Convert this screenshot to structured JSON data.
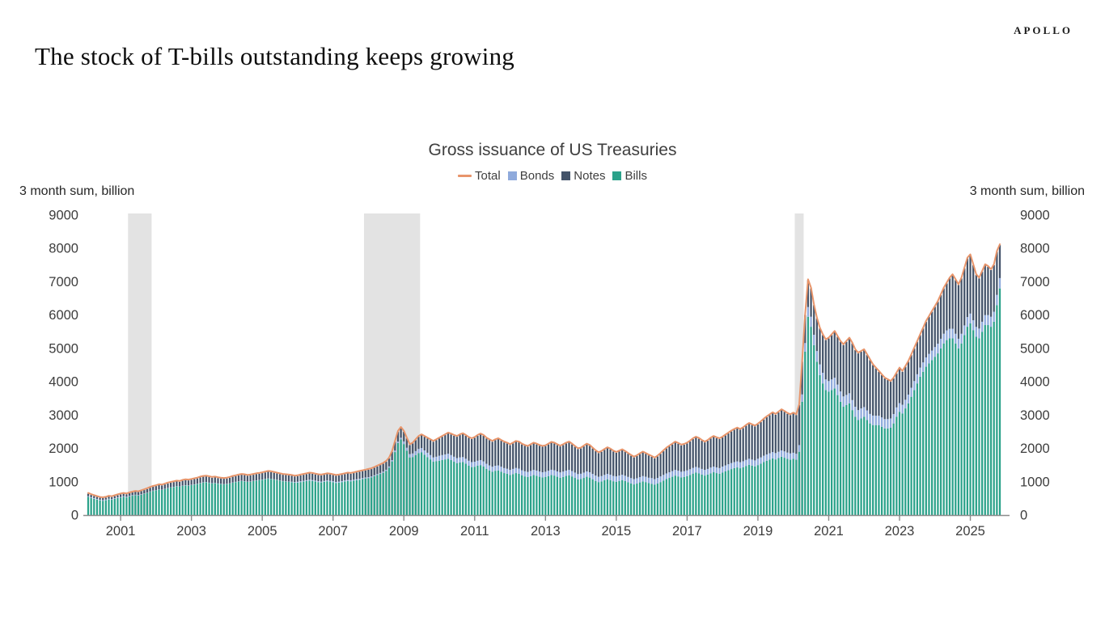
{
  "page": {
    "logo": "APOLLO",
    "headline": "The stock of T-bills outstanding keeps growing"
  },
  "chart": {
    "title": "Gross issuance of US Treasuries",
    "axis_unit_left": "3 month sum, billion",
    "axis_unit_right": "3 month sum, billion",
    "legend": [
      {
        "label": "Total",
        "type": "line",
        "color": "#E8956B"
      },
      {
        "label": "Bonds",
        "type": "square",
        "color": "#8FAADC"
      },
      {
        "label": "Notes",
        "type": "square",
        "color": "#44546A"
      },
      {
        "label": "Bills",
        "type": "square",
        "color": "#2BA28A"
      }
    ],
    "colors": {
      "recession_band": "#E3E3E3",
      "axis": "#8C8C8C",
      "tick_text": "#3d3d3d"
    }
  },
  "chart_data": {
    "type": "bar",
    "subtype": "stacked-bars-with-total-line",
    "title": "Gross issuance of US Treasuries",
    "ylabel": "3 month sum, billion",
    "ylim": [
      0,
      9000
    ],
    "y_ticks": [
      0,
      1000,
      2000,
      3000,
      4000,
      5000,
      6000,
      7000,
      8000,
      9000
    ],
    "x_tick_years": [
      2001,
      2003,
      2005,
      2007,
      2009,
      2011,
      2013,
      2015,
      2017,
      2019,
      2021,
      2023,
      2025
    ],
    "frequency": "monthly",
    "start_month": "2000-02",
    "end_month": "2025-11",
    "grid": false,
    "legend_position": "top-center",
    "recession_bands": [
      {
        "from": "2001-04",
        "to": "2001-11"
      },
      {
        "from": "2007-12",
        "to": "2009-06"
      },
      {
        "from": "2020-02",
        "to": "2020-04"
      }
    ],
    "total_series_is_sum_of_stacked": true,
    "series": [
      {
        "name": "Bills",
        "color": "#2BA28A",
        "values": [
          545,
          515,
          490,
          465,
          440,
          430,
          445,
          470,
          460,
          485,
          510,
          525,
          545,
          530,
          557,
          580,
          595,
          585,
          610,
          640,
          665,
          700,
          725,
          740,
          765,
          755,
          780,
          805,
          825,
          840,
          860,
          850,
          875,
          890,
          880,
          900,
          915,
          930,
          955,
          975,
          985,
          965,
          950,
          955,
          940,
          930,
          920,
          930,
          945,
          970,
          990,
          1005,
          1020,
          1010,
          995,
          1000,
          1020,
          1035,
          1045,
          1060,
          1075,
          1090,
          1080,
          1065,
          1050,
          1030,
          1015,
          1005,
          995,
          985,
          970,
          975,
          990,
          1005,
          1020,
          1035,
          1025,
          1010,
          990,
          980,
          1000,
          1015,
          1005,
          985,
          965,
          975,
          990,
          1010,
          1025,
          1015,
          1030,
          1045,
          1060,
          1080,
          1100,
          1110,
          1130,
          1165,
          1200,
          1235,
          1270,
          1325,
          1420,
          1610,
          1890,
          2160,
          2270,
          2130,
          1930,
          1730,
          1740,
          1800,
          1860,
          1880,
          1810,
          1740,
          1670,
          1600,
          1620,
          1630,
          1650,
          1670,
          1690,
          1650,
          1600,
          1560,
          1580,
          1590,
          1540,
          1480,
          1440,
          1450,
          1480,
          1500,
          1460,
          1390,
          1340,
          1300,
          1330,
          1340,
          1300,
          1260,
          1240,
          1200,
          1230,
          1260,
          1240,
          1190,
          1160,
          1140,
          1170,
          1200,
          1180,
          1150,
          1130,
          1140,
          1170,
          1200,
          1185,
          1150,
          1120,
          1145,
          1175,
          1195,
          1160,
          1115,
          1070,
          1080,
          1115,
          1150,
          1125,
          1075,
          1025,
          990,
          1010,
          1045,
          1075,
          1050,
          1015,
          1000,
          1025,
          1050,
          1020,
          985,
          950,
          920,
          945,
          980,
          1010,
          990,
          960,
          940,
          910,
          945,
          990,
          1035,
          1080,
          1115,
          1150,
          1185,
          1160,
          1130,
          1145,
          1170,
          1205,
          1245,
          1275,
          1250,
          1215,
          1185,
          1215,
          1255,
          1285,
          1260,
          1240,
          1275,
          1310,
          1345,
          1380,
          1410,
          1430,
          1405,
          1435,
          1475,
          1510,
          1485,
          1460,
          1500,
          1540,
          1590,
          1630,
          1665,
          1700,
          1670,
          1710,
          1750,
          1720,
          1685,
          1660,
          1690,
          1660,
          1900,
          3400,
          4900,
          5950,
          5650,
          5100,
          4600,
          4200,
          3950,
          3750,
          3700,
          3750,
          3800,
          3600,
          3400,
          3250,
          3300,
          3350,
          3150,
          2950,
          2850,
          2900,
          2950,
          2850,
          2750,
          2700,
          2700,
          2700,
          2650,
          2600,
          2600,
          2620,
          2750,
          2950,
          3100,
          3050,
          3200,
          3350,
          3550,
          3750,
          3950,
          4150,
          4300,
          4450,
          4550,
          4650,
          4750,
          4850,
          5000,
          5150,
          5250,
          5300,
          5300,
          5150,
          5000,
          5150,
          5400,
          5650,
          5750,
          5550,
          5350,
          5300,
          5500,
          5700,
          5700,
          5650,
          5800,
          6300,
          6800
        ]
      },
      {
        "name": "Bonds",
        "color": "#8FAADC",
        "values": [
          20,
          20,
          20,
          20,
          20,
          20,
          20,
          20,
          20,
          20,
          20,
          20,
          20,
          20,
          20,
          20,
          15,
          15,
          15,
          10,
          10,
          10,
          10,
          8,
          8,
          8,
          8,
          8,
          8,
          8,
          8,
          8,
          8,
          8,
          8,
          8,
          8,
          8,
          8,
          8,
          8,
          8,
          8,
          8,
          8,
          8,
          8,
          8,
          8,
          8,
          8,
          8,
          8,
          8,
          8,
          8,
          8,
          8,
          8,
          8,
          8,
          8,
          8,
          8,
          8,
          8,
          8,
          8,
          10,
          15,
          20,
          25,
          25,
          25,
          25,
          25,
          25,
          25,
          25,
          25,
          25,
          25,
          25,
          30,
          30,
          30,
          30,
          30,
          30,
          30,
          30,
          30,
          30,
          30,
          30,
          30,
          30,
          30,
          30,
          30,
          35,
          35,
          40,
          40,
          45,
          45,
          50,
          80,
          90,
          100,
          110,
          120,
          125,
          130,
          130,
          130,
          130,
          130,
          130,
          150,
          150,
          150,
          150,
          150,
          150,
          150,
          150,
          150,
          150,
          150,
          150,
          150,
          150,
          150,
          150,
          150,
          150,
          150,
          150,
          150,
          150,
          150,
          150,
          155,
          155,
          155,
          155,
          155,
          155,
          155,
          155,
          155,
          155,
          155,
          155,
          160,
          160,
          160,
          160,
          160,
          160,
          160,
          160,
          160,
          160,
          160,
          160,
          160,
          160,
          160,
          160,
          160,
          160,
          160,
          160,
          160,
          160,
          160,
          160,
          160,
          160,
          160,
          160,
          160,
          160,
          160,
          160,
          160,
          160,
          160,
          160,
          170,
          170,
          170,
          170,
          170,
          170,
          170,
          170,
          170,
          170,
          170,
          170,
          170,
          170,
          170,
          170,
          170,
          170,
          170,
          170,
          170,
          170,
          170,
          170,
          180,
          180,
          180,
          180,
          180,
          180,
          180,
          180,
          180,
          180,
          180,
          180,
          190,
          190,
          190,
          190,
          190,
          190,
          190,
          190,
          190,
          190,
          190,
          190,
          180,
          180,
          200,
          220,
          260,
          290,
          300,
          310,
          320,
          320,
          320,
          320,
          320,
          320,
          320,
          315,
          310,
          310,
          305,
          305,
          300,
          300,
          300,
          300,
          290,
          290,
          285,
          285,
          280,
          280,
          280,
          280,
          280,
          280,
          280,
          280,
          260,
          260,
          260,
          265,
          270,
          270,
          275,
          275,
          280,
          280,
          285,
          285,
          290,
          290,
          290,
          290,
          290,
          290,
          290,
          290,
          290,
          290,
          290,
          290,
          295,
          295,
          295,
          295,
          300,
          300,
          300,
          300,
          300,
          305,
          310
        ]
      },
      {
        "name": "Notes",
        "color": "#44546A",
        "values": [
          75,
          70,
          65,
          60,
          60,
          60,
          60,
          65,
          60,
          65,
          70,
          75,
          75,
          75,
          78,
          80,
          90,
          90,
          95,
          100,
          105,
          110,
          115,
          122,
          127,
          127,
          132,
          137,
          137,
          142,
          142,
          142,
          147,
          152,
          152,
          152,
          157,
          162,
          167,
          167,
          167,
          167,
          162,
          167,
          162,
          162,
          162,
          162,
          167,
          172,
          172,
          177,
          182,
          182,
          177,
          182,
          182,
          187,
          187,
          192,
          197,
          202,
          202,
          197,
          192,
          192,
          187,
          187,
          185,
          180,
          170,
          170,
          175,
          180,
          185,
          190,
          190,
          185,
          185,
          185,
          185,
          190,
          190,
          185,
          185,
          185,
          190,
          190,
          195,
          195,
          200,
          205,
          210,
          210,
          210,
          220,
          220,
          225,
          230,
          235,
          235,
          240,
          240,
          250,
          265,
          295,
          300,
          290,
          280,
          270,
          300,
          330,
          365,
          390,
          410,
          430,
          450,
          470,
          500,
          520,
          550,
          580,
          610,
          620,
          630,
          640,
          670,
          690,
          690,
          690,
          690,
          720,
          750,
          770,
          770,
          760,
          760,
          750,
          770,
          790,
          780,
          770,
          760,
          745,
          765,
          785,
          785,
          775,
          765,
          755,
          775,
          795,
          785,
          775,
          765,
          770,
          790,
          810,
          805,
          790,
          780,
          795,
          815,
          825,
          800,
          775,
          750,
          760,
          785,
          810,
          795,
          765,
          735,
          710,
          730,
          755,
          775,
          760,
          735,
          710,
          725,
          740,
          720,
          695,
          670,
          650,
          665,
          690,
          710,
          690,
          670,
          640,
          620,
          645,
          680,
          715,
          750,
          775,
          800,
          825,
          810,
          790,
          795,
          810,
          835,
          865,
          885,
          870,
          845,
          825,
          845,
          875,
          895,
          880,
          870,
          875,
          900,
          925,
          950,
          970,
          990,
          975,
          995,
          1025,
          1050,
          1035,
          1020,
          1030,
          1060,
          1090,
          1120,
          1145,
          1170,
          1150,
          1180,
          1210,
          1190,
          1165,
          1150,
          1180,
          1160,
          1200,
          980,
          840,
          810,
          850,
          890,
          980,
          1080,
          1130,
          1180,
          1280,
          1330,
          1380,
          1435,
          1490,
          1540,
          1595,
          1645,
          1700,
          1700,
          1700,
          1700,
          1710,
          1660,
          1615,
          1515,
          1420,
          1320,
          1270,
          1220,
          1170,
          1100,
          1070,
          1020,
          1040,
          990,
          990,
          985,
          980,
          980,
          975,
          975,
          1020,
          1070,
          1115,
          1165,
          1210,
          1260,
          1310,
          1360,
          1410,
          1510,
          1610,
          1610,
          1610,
          1660,
          1710,
          1760,
          1755,
          1655,
          1555,
          1505,
          1500,
          1500,
          1450,
          1400,
          1400,
          1295,
          990
        ]
      },
      {
        "name": "Total",
        "type": "line",
        "color": "#E8956B",
        "derived": "sum_of_stacked_series"
      }
    ]
  }
}
